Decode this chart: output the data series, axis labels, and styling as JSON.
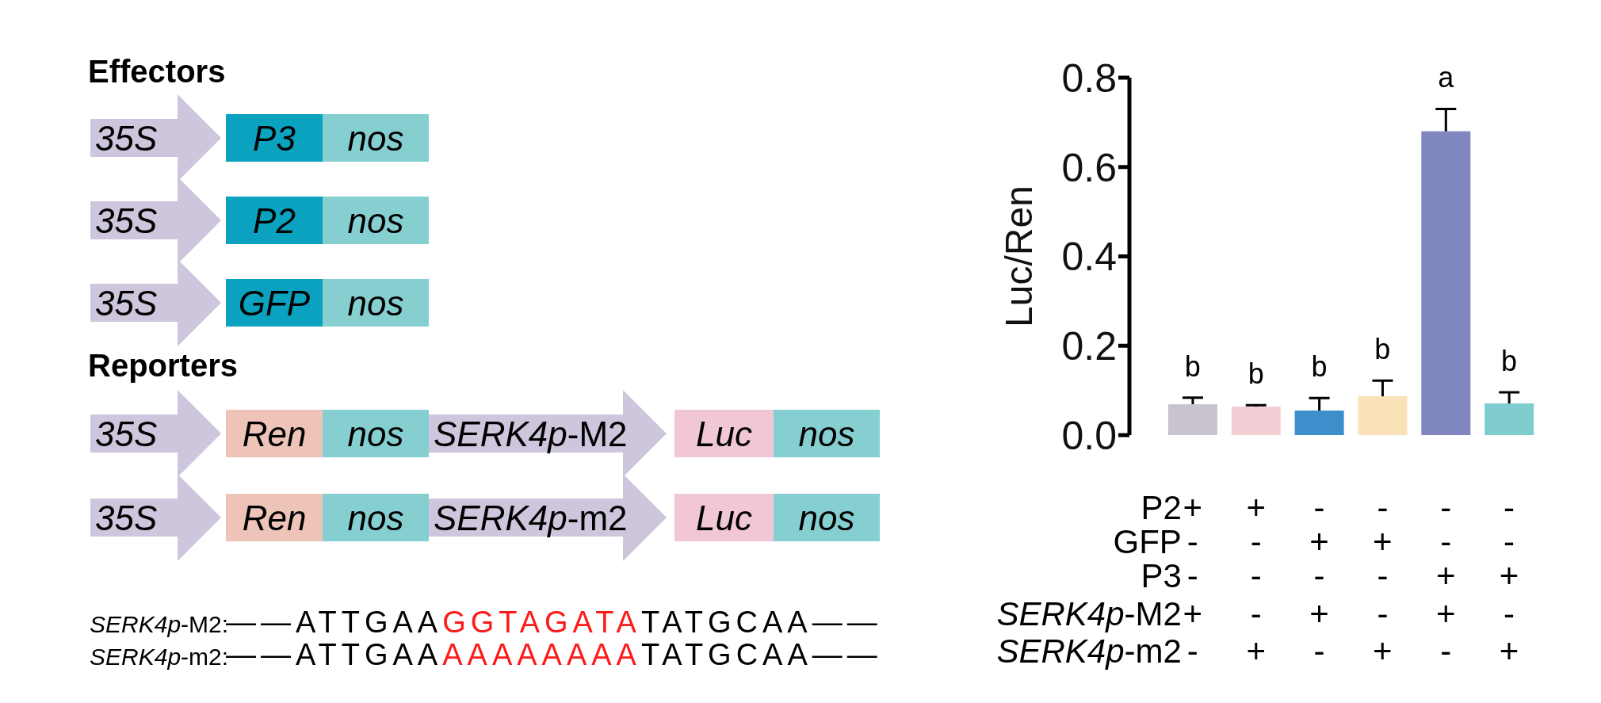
{
  "chart_data": [
    {
      "type": "other",
      "annotations": [
        "Effectors",
        "35S",
        "P3",
        "nos",
        "35S",
        "P2",
        "nos",
        "35S",
        "GFP",
        "nos",
        "Reporters",
        "35S",
        "Ren",
        "nos",
        "SERK4p-M2",
        "Luc",
        "nos",
        "35S",
        "Ren",
        "nos",
        "SERK4p-m2",
        "Luc",
        "nos",
        "SERK4p-M2:",
        "——ATTGAA",
        "GGTAGATA",
        "TATGCAA——",
        "SERK4p-m2:",
        "——ATTGAA",
        "AAAAAAAA",
        "TATGCAA——"
      ]
    },
    {
      "type": "bar",
      "categories": [
        null,
        null,
        null,
        null,
        null,
        null
      ],
      "ylabel": "Luc/Ren",
      "ylim": [
        0,
        0.8
      ],
      "yticks": [
        {
          "value": 0,
          "label": "0.0"
        },
        0.2,
        0.4,
        0.6,
        0.8
      ],
      "series": [
        {
          "type": "bar",
          "values": [
            0.069,
            0.064,
            0.055,
            0.087,
            0.68,
            0.071
          ],
          "errors": [
            [
              0.069,
              0.084
            ],
            [
              0.064,
              0.067
            ],
            [
              0.055,
              0.083
            ],
            [
              0.087,
              0.122
            ],
            [
              0.68,
              0.73
            ],
            [
              0.071,
              0.096
            ]
          ],
          "colors": [
            "#c8c3cf",
            "#f2cfd4",
            "#3d8fcb",
            "#f9e1b8",
            "#7f86c0",
            "#7fcdcf"
          ]
        }
      ],
      "annotations": [
        "b",
        "b",
        "b",
        "b",
        "a",
        "b",
        "P2",
        "+",
        "+",
        "-",
        "-",
        "-",
        "-",
        "GFP",
        "-",
        "-",
        "+",
        "+",
        "-",
        "-",
        "P3",
        "-",
        "-",
        "-",
        "-",
        "+",
        "+",
        "SERK4p-M2",
        "+",
        "-",
        "+",
        "-",
        "+",
        "-",
        "SERK4p-m2",
        "-",
        "+",
        "-",
        "+",
        "-",
        "+"
      ]
    }
  ]
}
